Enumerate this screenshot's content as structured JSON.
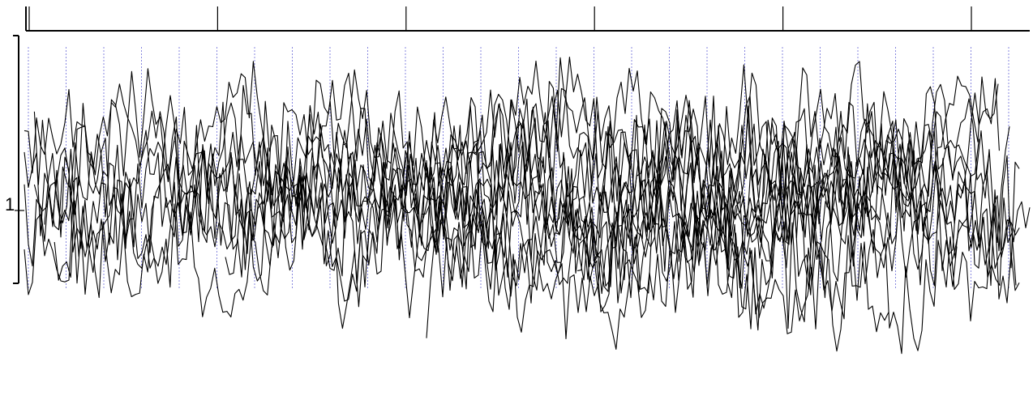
{
  "chart_data": {
    "type": "line",
    "title": "",
    "xlabel": "",
    "ylabel": "",
    "y_tick_labels": [
      "1"
    ],
    "top_axis_tick_count": 6,
    "vertical_grid_count": 27,
    "grid": "vertical dashed",
    "colors": {
      "lines": "#000000",
      "grid": "#6a6ad8",
      "background": "#ffffff"
    },
    "series": [
      {
        "start": 0.0,
        "end": 0.98,
        "base": 0.1,
        "amp": 0.45,
        "seed": 3
      },
      {
        "start": 0.0,
        "end": 0.96,
        "base": 0.25,
        "amp": 0.5,
        "seed": 7
      },
      {
        "start": 0.0,
        "end": 1.0,
        "base": -0.05,
        "amp": 0.55,
        "seed": 11
      },
      {
        "start": 0.01,
        "end": 0.95,
        "base": 0.35,
        "amp": 0.4,
        "seed": 13
      },
      {
        "start": 0.01,
        "end": 0.97,
        "base": 0.0,
        "amp": 0.6,
        "seed": 17
      },
      {
        "start": 0.02,
        "end": 0.9,
        "base": -0.2,
        "amp": 0.5,
        "seed": 19
      },
      {
        "start": 0.03,
        "end": 0.99,
        "base": 0.15,
        "amp": 0.45,
        "seed": 23
      },
      {
        "start": 0.4,
        "end": 0.97,
        "base": 0.45,
        "amp": 0.55,
        "seed": 29
      },
      {
        "start": 0.4,
        "end": 0.86,
        "base": -0.6,
        "amp": 0.55,
        "seed": 31
      },
      {
        "start": 0.2,
        "end": 0.99,
        "base": -0.3,
        "amp": 0.55,
        "seed": 37
      },
      {
        "start": 0.0,
        "end": 0.93,
        "base": 0.05,
        "amp": 0.5,
        "seed": 41
      },
      {
        "start": 0.55,
        "end": 0.99,
        "base": -0.45,
        "amp": 0.55,
        "seed": 43
      },
      {
        "start": 0.15,
        "end": 0.8,
        "base": 0.3,
        "amp": 0.45,
        "seed": 47
      },
      {
        "start": 0.3,
        "end": 0.99,
        "base": -0.1,
        "amp": 0.55,
        "seed": 53
      }
    ]
  }
}
